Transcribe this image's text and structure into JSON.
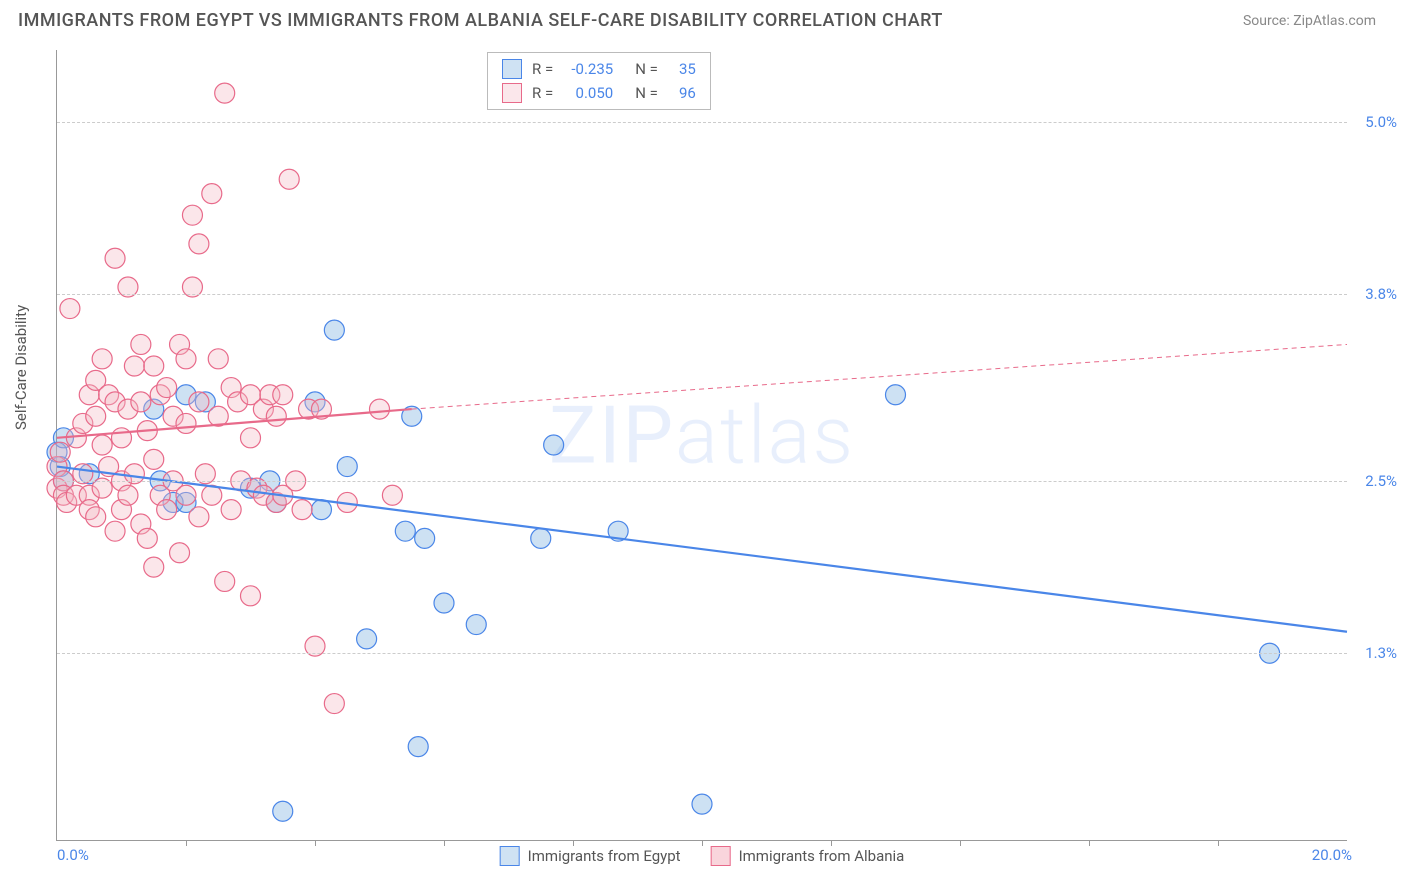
{
  "title": "IMMIGRANTS FROM EGYPT VS IMMIGRANTS FROM ALBANIA SELF-CARE DISABILITY CORRELATION CHART",
  "source": "Source: ZipAtlas.com",
  "ylabel": "Self-Care Disability",
  "watermark": "ZIPatlas",
  "chart": {
    "type": "scatter",
    "xlim": [
      0,
      20
    ],
    "ylim": [
      0,
      5.5
    ],
    "yticks": [
      {
        "v": 1.3,
        "label": "1.3%"
      },
      {
        "v": 2.5,
        "label": "2.5%"
      },
      {
        "v": 3.8,
        "label": "3.8%"
      },
      {
        "v": 5.0,
        "label": "5.0%"
      }
    ],
    "xtick_left": "0.0%",
    "xtick_right": "20.0%",
    "xtick_marks": [
      2,
      4,
      6,
      8,
      10,
      12,
      14,
      16,
      18
    ],
    "background_color": "#ffffff",
    "grid_color": "#cccccc",
    "grid_dash": "4,4",
    "marker_radius": 10,
    "marker_fill_opacity": 0.35,
    "marker_stroke_width": 1.2,
    "series": [
      {
        "name": "Immigrants from Egypt",
        "key": "egypt",
        "color": "#6fa8dc",
        "stroke": "#4a86e8",
        "R": "-0.235",
        "N": "35",
        "trend": {
          "x1": 0,
          "y1": 2.6,
          "x2": 20,
          "y2": 1.45,
          "stroke_width": 2.2,
          "dash": "none"
        },
        "points": [
          [
            0.0,
            2.7
          ],
          [
            0.05,
            2.6
          ],
          [
            0.1,
            2.5
          ],
          [
            0.1,
            2.8
          ],
          [
            0.5,
            2.55
          ],
          [
            1.5,
            3.0
          ],
          [
            1.6,
            2.5
          ],
          [
            1.8,
            2.35
          ],
          [
            2.0,
            3.1
          ],
          [
            2.0,
            2.35
          ],
          [
            2.3,
            3.05
          ],
          [
            3.0,
            2.45
          ],
          [
            3.3,
            2.5
          ],
          [
            3.4,
            2.35
          ],
          [
            3.5,
            0.2
          ],
          [
            4.0,
            3.05
          ],
          [
            4.1,
            2.3
          ],
          [
            4.3,
            3.55
          ],
          [
            4.5,
            2.6
          ],
          [
            4.8,
            1.4
          ],
          [
            5.4,
            2.15
          ],
          [
            5.5,
            2.95
          ],
          [
            5.6,
            0.65
          ],
          [
            5.7,
            2.1
          ],
          [
            6.0,
            1.65
          ],
          [
            6.5,
            1.5
          ],
          [
            7.5,
            2.1
          ],
          [
            7.7,
            2.75
          ],
          [
            8.7,
            2.15
          ],
          [
            10.0,
            0.25
          ],
          [
            13.0,
            3.1
          ],
          [
            18.8,
            1.3
          ]
        ]
      },
      {
        "name": "Immigrants from Albania",
        "key": "albania",
        "color": "#f4b6c2",
        "stroke": "#e86a8a",
        "R": "0.050",
        "N": "96",
        "trend_solid": {
          "x1": 0,
          "y1": 2.8,
          "x2": 5.5,
          "y2": 3.0,
          "stroke_width": 2.2
        },
        "trend_dash": {
          "x1": 5.5,
          "y1": 3.0,
          "x2": 20,
          "y2": 3.45,
          "stroke_width": 1,
          "dash": "5,4"
        },
        "points": [
          [
            0.0,
            2.6
          ],
          [
            0.0,
            2.45
          ],
          [
            0.05,
            2.7
          ],
          [
            0.1,
            2.5
          ],
          [
            0.1,
            2.4
          ],
          [
            0.15,
            2.35
          ],
          [
            0.2,
            3.7
          ],
          [
            0.3,
            2.4
          ],
          [
            0.3,
            2.8
          ],
          [
            0.4,
            2.9
          ],
          [
            0.4,
            2.55
          ],
          [
            0.5,
            3.1
          ],
          [
            0.5,
            2.4
          ],
          [
            0.5,
            2.3
          ],
          [
            0.6,
            2.95
          ],
          [
            0.6,
            3.2
          ],
          [
            0.6,
            2.25
          ],
          [
            0.7,
            2.45
          ],
          [
            0.7,
            3.35
          ],
          [
            0.7,
            2.75
          ],
          [
            0.8,
            3.1
          ],
          [
            0.8,
            2.6
          ],
          [
            0.9,
            2.15
          ],
          [
            0.9,
            4.05
          ],
          [
            0.9,
            3.05
          ],
          [
            1.0,
            2.5
          ],
          [
            1.0,
            2.8
          ],
          [
            1.0,
            2.3
          ],
          [
            1.1,
            3.0
          ],
          [
            1.1,
            2.4
          ],
          [
            1.1,
            3.85
          ],
          [
            1.2,
            3.3
          ],
          [
            1.2,
            2.55
          ],
          [
            1.3,
            2.2
          ],
          [
            1.3,
            3.45
          ],
          [
            1.3,
            3.05
          ],
          [
            1.4,
            2.85
          ],
          [
            1.4,
            2.1
          ],
          [
            1.5,
            1.9
          ],
          [
            1.5,
            3.3
          ],
          [
            1.5,
            2.65
          ],
          [
            1.6,
            3.1
          ],
          [
            1.6,
            2.4
          ],
          [
            1.7,
            2.3
          ],
          [
            1.7,
            3.15
          ],
          [
            1.8,
            2.95
          ],
          [
            1.8,
            2.5
          ],
          [
            1.9,
            2.0
          ],
          [
            1.9,
            3.45
          ],
          [
            2.0,
            2.9
          ],
          [
            2.0,
            3.35
          ],
          [
            2.0,
            2.4
          ],
          [
            2.1,
            3.85
          ],
          [
            2.1,
            4.35
          ],
          [
            2.2,
            3.05
          ],
          [
            2.2,
            4.15
          ],
          [
            2.2,
            2.25
          ],
          [
            2.3,
            2.55
          ],
          [
            2.4,
            4.5
          ],
          [
            2.4,
            2.4
          ],
          [
            2.5,
            2.95
          ],
          [
            2.5,
            3.35
          ],
          [
            2.6,
            1.8
          ],
          [
            2.6,
            5.2
          ],
          [
            2.7,
            3.15
          ],
          [
            2.7,
            2.3
          ],
          [
            2.8,
            3.05
          ],
          [
            2.85,
            2.5
          ],
          [
            3.0,
            2.8
          ],
          [
            3.0,
            3.1
          ],
          [
            3.0,
            1.7
          ],
          [
            3.1,
            2.45
          ],
          [
            3.2,
            3.0
          ],
          [
            3.2,
            2.4
          ],
          [
            3.3,
            3.1
          ],
          [
            3.4,
            2.35
          ],
          [
            3.4,
            2.95
          ],
          [
            3.5,
            2.4
          ],
          [
            3.5,
            3.1
          ],
          [
            3.6,
            4.6
          ],
          [
            3.7,
            2.5
          ],
          [
            3.8,
            2.3
          ],
          [
            3.9,
            3.0
          ],
          [
            4.0,
            1.35
          ],
          [
            4.1,
            3.0
          ],
          [
            4.3,
            0.95
          ],
          [
            4.5,
            2.35
          ],
          [
            5.0,
            3.0
          ],
          [
            5.2,
            2.4
          ]
        ]
      }
    ]
  },
  "legend_bottom": [
    {
      "label": "Immigrants from Egypt",
      "fill": "#cfe2f3",
      "border": "#4a86e8"
    },
    {
      "label": "Immigrants from Albania",
      "fill": "#f9d5dc",
      "border": "#e86a8a"
    }
  ]
}
